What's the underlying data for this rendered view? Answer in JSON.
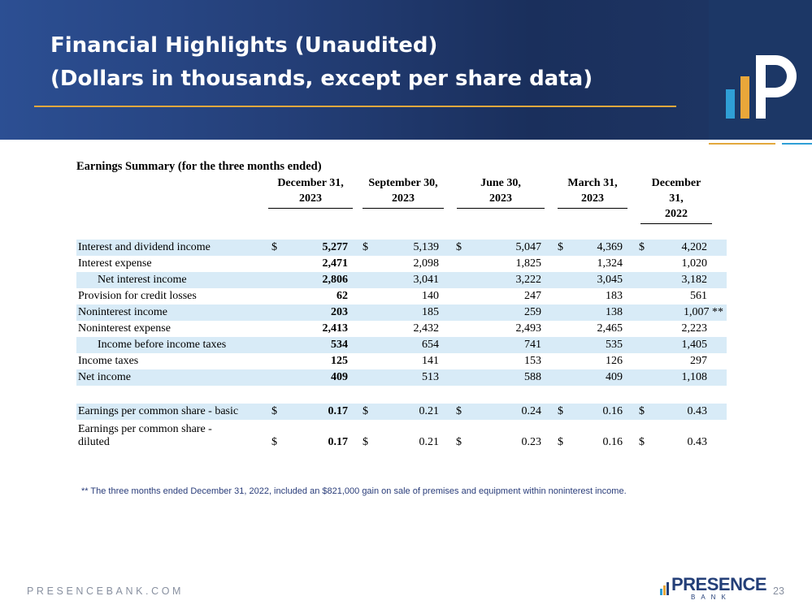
{
  "header": {
    "title_line1": "Financial Highlights (Unaudited)",
    "title_line2": "(Dollars in thousands, except per share data)"
  },
  "colors": {
    "navy": "#1c3766",
    "gold": "#e2a83d",
    "sky": "#2f9fd6",
    "row_shade": "#d8ebf7"
  },
  "table": {
    "title": "Earnings Summary (for the three months ended)",
    "columns": [
      {
        "line1": "",
        "line2": "December 31,",
        "line3": "2023"
      },
      {
        "line1": "",
        "line2": "September 30,",
        "line3": "2023"
      },
      {
        "line1": "",
        "line2": "June 30,",
        "line3": "2023"
      },
      {
        "line1": "",
        "line2": "March  31,",
        "line3": "2023"
      },
      {
        "line1": "December",
        "line2": "31,",
        "line3": "2022"
      }
    ],
    "currency_symbol": "$",
    "rows": [
      {
        "label": "Interest and dividend income",
        "values": [
          "5,277",
          "5,139",
          "5,047",
          "4,369",
          "4,202"
        ]
      },
      {
        "label": "Interest expense",
        "values": [
          "2,471",
          "2,098",
          "1,825",
          "1,324",
          "1,020"
        ]
      },
      {
        "label": "Net interest income",
        "values": [
          "2,806",
          "3,041",
          "3,222",
          "3,045",
          "3,182"
        ]
      },
      {
        "label": "Provision for credit losses",
        "values": [
          "62",
          "140",
          "247",
          "183",
          "561"
        ]
      },
      {
        "label": "Noninterest income",
        "values": [
          "203",
          "185",
          "259",
          "138",
          "1,007 **"
        ]
      },
      {
        "label": "Noninterest expense",
        "values": [
          "2,413",
          "2,432",
          "2,493",
          "2,465",
          "2,223"
        ]
      },
      {
        "label": "Income before income taxes",
        "values": [
          "534",
          "654",
          "741",
          "535",
          "1,405"
        ]
      },
      {
        "label": "Income taxes",
        "values": [
          "125",
          "141",
          "153",
          "126",
          "297"
        ]
      },
      {
        "label": "Net income",
        "values": [
          "409",
          "513",
          "588",
          "409",
          "1,108"
        ]
      }
    ],
    "eps_rows": [
      {
        "label": "Earnings per common share - basic",
        "values": [
          "0.17",
          "0.21",
          "0.24",
          "0.16",
          "0.43"
        ]
      },
      {
        "label_line1": "Earnings per common share -",
        "label_line2": "diluted",
        "values": [
          "0.17",
          "0.21",
          "0.23",
          "0.16",
          "0.43"
        ]
      }
    ]
  },
  "footnote": "** The three months ended December 31, 2022,  included an $821,000 gain on sale of premises and equipment within noninterest income.",
  "footer": {
    "website": "PRESENCEBANK.COM",
    "brand_name": "PRESENCE",
    "brand_sub": "BANK",
    "page_number": "23"
  }
}
